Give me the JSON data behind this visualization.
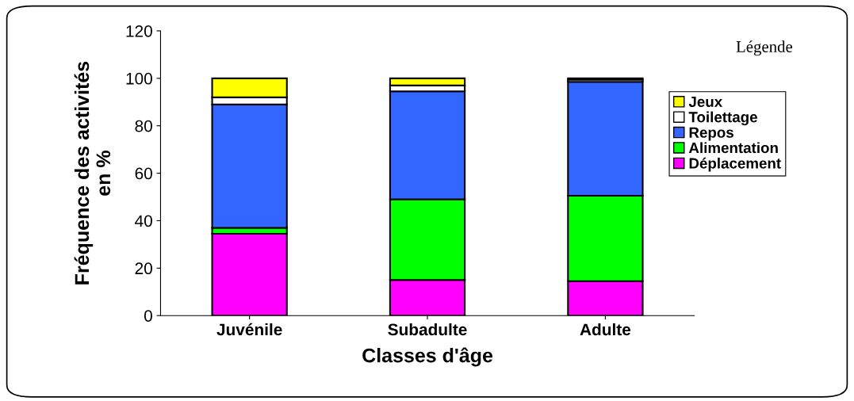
{
  "chart_data": {
    "type": "bar",
    "stacked": true,
    "xlabel": "Classes d'âge",
    "ylabel": "Fréquence des activités\nen %",
    "legend_title": "Légende",
    "legend": "right",
    "categories": [
      "Juvénile",
      "Subadulte",
      "Adulte"
    ],
    "series": [
      {
        "name": "Déplacement",
        "color": "#ff00ff",
        "values": [
          34.5,
          15,
          14.5
        ]
      },
      {
        "name": "Alimentation",
        "color": "#00ff00",
        "values": [
          2.5,
          34,
          36
        ]
      },
      {
        "name": "Repos",
        "color": "#3366ff",
        "values": [
          52,
          45.5,
          48
        ]
      },
      {
        "name": "Toilettage",
        "color": "#ffffff",
        "values": [
          3,
          2.5,
          1
        ]
      },
      {
        "name": "Jeux",
        "color": "#ffff00",
        "values": [
          8,
          3,
          0.5
        ]
      }
    ],
    "ylim": [
      0,
      120
    ],
    "yticks": [
      0,
      20,
      40,
      60,
      80,
      100,
      120
    ],
    "grid": false
  }
}
